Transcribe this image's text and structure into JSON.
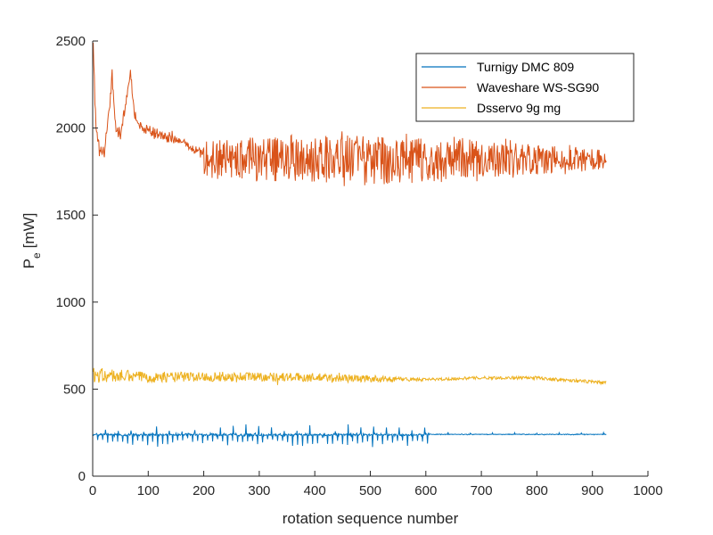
{
  "chart_data": {
    "type": "line",
    "title": "",
    "xlabel": "rotation sequence number",
    "ylabel_main": "P",
    "ylabel_sub": "e",
    "ylabel_unit": "[mW]",
    "xlim": [
      0,
      1000
    ],
    "ylim": [
      0,
      2500
    ],
    "xticks": [
      "0",
      "100",
      "200",
      "300",
      "400",
      "500",
      "600",
      "700",
      "800",
      "900",
      "1000"
    ],
    "yticks": [
      "0",
      "500",
      "1000",
      "1500",
      "2000",
      "2500"
    ],
    "grid": false,
    "legend_position": "top-right",
    "series": [
      {
        "name": "Turnigy DMC 809",
        "color": "#0072BD",
        "n_points": 925,
        "x_range": [
          1,
          925
        ],
        "segments": [
          {
            "x0": 1,
            "x1": 605,
            "base": 238,
            "jitter": 12,
            "dip_depth": 45,
            "dip_every": 9,
            "spike_height": 40,
            "spike_every": 23
          },
          {
            "x0": 605,
            "x1": 925,
            "base": 240,
            "jitter": 4,
            "dip_depth": 0,
            "dip_every": 0,
            "spike_height": 8,
            "spike_every": 40
          }
        ],
        "range_approx": [
          190,
          320
        ]
      },
      {
        "name": "Waveshare WS-SG90",
        "color": "#D95319",
        "n_points": 925,
        "x_range": [
          1,
          925
        ],
        "start_peak": 2490,
        "transient": [
          [
            1,
            2450
          ],
          [
            6,
            2000
          ],
          [
            12,
            1880
          ],
          [
            20,
            1850
          ],
          [
            28,
            2050
          ],
          [
            35,
            2300
          ],
          [
            42,
            1980
          ],
          [
            50,
            1970
          ],
          [
            60,
            2150
          ],
          [
            68,
            2330
          ],
          [
            76,
            2050
          ],
          [
            90,
            2000
          ],
          [
            110,
            1970
          ],
          [
            140,
            1950
          ],
          [
            170,
            1900
          ],
          [
            200,
            1850
          ]
        ],
        "steady_mean": 1820,
        "steady_amplitude": [
          [
            200,
            110
          ],
          [
            450,
            150
          ],
          [
            650,
            130
          ],
          [
            925,
            55
          ]
        ],
        "range_approx": [
          1640,
          2490
        ]
      },
      {
        "name": "Dsservo 9g mg",
        "color": "#EDB120",
        "n_points": 925,
        "x_range": [
          1,
          925
        ],
        "mean_profile": [
          [
            1,
            580
          ],
          [
            100,
            570
          ],
          [
            300,
            572
          ],
          [
            500,
            560
          ],
          [
            600,
            555
          ],
          [
            700,
            565
          ],
          [
            800,
            565
          ],
          [
            925,
            535
          ]
        ],
        "amplitude_profile": [
          [
            1,
            45
          ],
          [
            100,
            30
          ],
          [
            450,
            25
          ],
          [
            600,
            8
          ],
          [
            925,
            10
          ]
        ],
        "range_approx": [
          460,
          630
        ]
      }
    ]
  }
}
